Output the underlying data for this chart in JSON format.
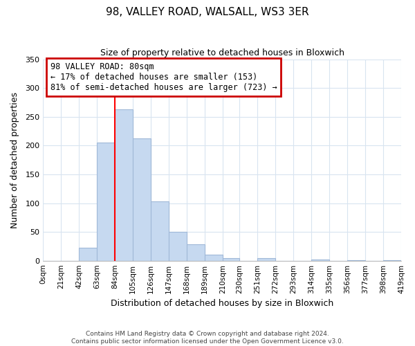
{
  "title": "98, VALLEY ROAD, WALSALL, WS3 3ER",
  "subtitle": "Size of property relative to detached houses in Bloxwich",
  "xlabel": "Distribution of detached houses by size in Bloxwich",
  "ylabel": "Number of detached properties",
  "bin_edges": [
    0,
    21,
    42,
    63,
    84,
    105,
    126,
    147,
    168,
    189,
    210,
    230,
    251,
    272,
    293,
    314,
    335,
    356,
    377,
    398,
    419
  ],
  "bar_heights": [
    0,
    0,
    22,
    205,
    263,
    212,
    103,
    50,
    29,
    10,
    4,
    0,
    4,
    0,
    0,
    2,
    0,
    1,
    0,
    1
  ],
  "bar_color": "#c6d9f0",
  "bar_edge_color": "#a0b8d8",
  "red_line_x": 84,
  "ylim": [
    0,
    350
  ],
  "yticks": [
    0,
    50,
    100,
    150,
    200,
    250,
    300,
    350
  ],
  "annotation_title": "98 VALLEY ROAD: 80sqm",
  "annotation_line1": "← 17% of detached houses are smaller (153)",
  "annotation_line2": "81% of semi-detached houses are larger (723) →",
  "annotation_box_color": "#ffffff",
  "annotation_box_edge_color": "#cc0000",
  "footer_line1": "Contains HM Land Registry data © Crown copyright and database right 2024.",
  "footer_line2": "Contains public sector information licensed under the Open Government Licence v3.0.",
  "background_color": "#ffffff",
  "grid_color": "#d8e4f0"
}
